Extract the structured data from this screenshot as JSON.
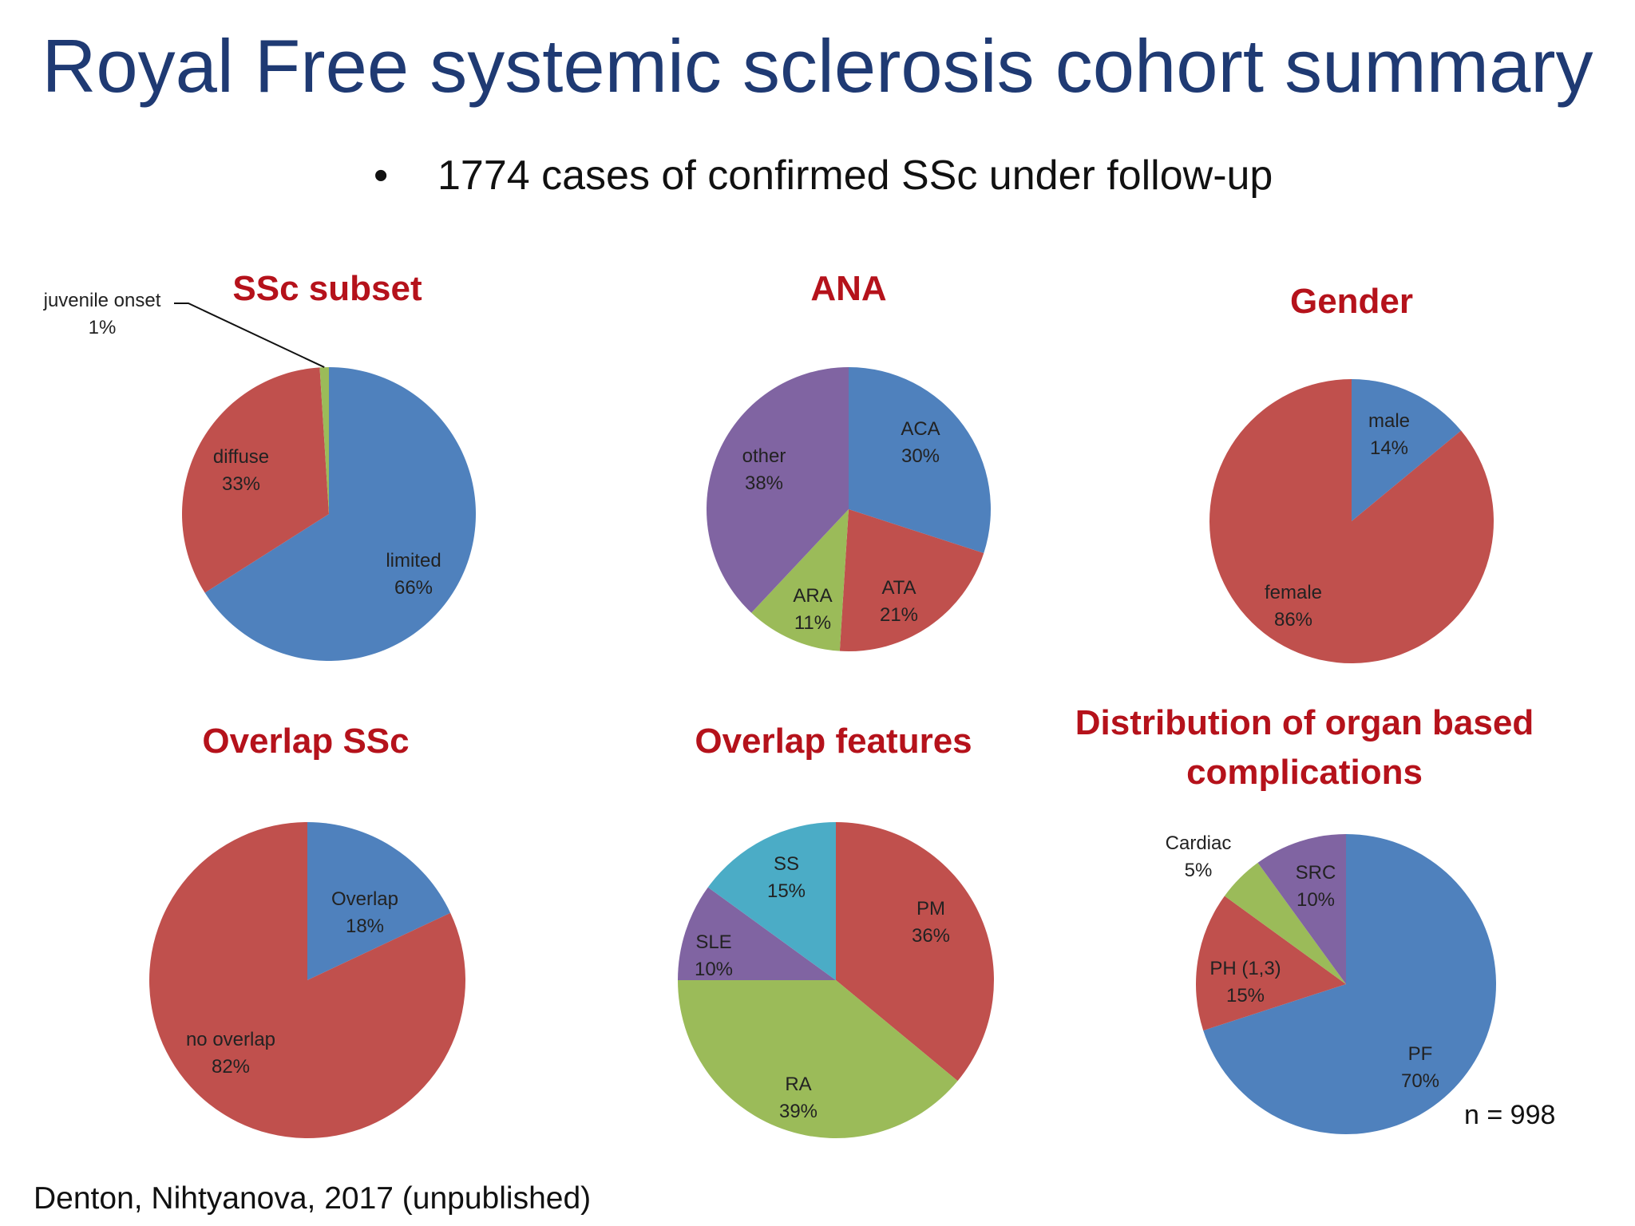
{
  "slide": {
    "title": "Royal Free systemic sclerosis cohort summary",
    "bullet": "1774 cases of confirmed SSc under follow-up",
    "n_note": "n = 998",
    "source": "Denton, Nihtyanova, 2017 (unpublished)"
  },
  "colors": {
    "title": "#1f3a73",
    "chart_title": "#b5121b",
    "blue": "#4f81bd",
    "red": "#c0504d",
    "green": "#9bbb59",
    "purple": "#8064a2",
    "teal": "#4bacc6"
  },
  "chart_data": [
    {
      "type": "pie",
      "title": "SSc subset",
      "slices": [
        {
          "label": "limited",
          "value": 66,
          "color": "#4f81bd"
        },
        {
          "label": "diffuse",
          "value": 33,
          "color": "#c0504d"
        },
        {
          "label": "juvenile onset",
          "value": 1,
          "color": "#9bbb59"
        }
      ]
    },
    {
      "type": "pie",
      "title": "ANA",
      "slices": [
        {
          "label": "ACA",
          "value": 30,
          "color": "#4f81bd"
        },
        {
          "label": "ATA",
          "value": 21,
          "color": "#c0504d"
        },
        {
          "label": "ARA",
          "value": 11,
          "color": "#9bbb59"
        },
        {
          "label": "other",
          "value": 38,
          "color": "#8064a2"
        }
      ]
    },
    {
      "type": "pie",
      "title": "Gender",
      "slices": [
        {
          "label": "male",
          "value": 14,
          "color": "#4f81bd"
        },
        {
          "label": "female",
          "value": 86,
          "color": "#c0504d"
        }
      ]
    },
    {
      "type": "pie",
      "title": "Overlap SSc",
      "slices": [
        {
          "label": "Overlap",
          "value": 18,
          "color": "#4f81bd"
        },
        {
          "label": "no overlap",
          "value": 82,
          "color": "#c0504d"
        }
      ]
    },
    {
      "type": "pie",
      "title": "Overlap features",
      "slices": [
        {
          "label": "PM",
          "value": 36,
          "color": "#c0504d"
        },
        {
          "label": "RA",
          "value": 39,
          "color": "#9bbb59"
        },
        {
          "label": "SLE",
          "value": 10,
          "color": "#8064a2"
        },
        {
          "label": "SS",
          "value": 15,
          "color": "#4bacc6"
        }
      ]
    },
    {
      "type": "pie",
      "title": "Distribution of organ based complications",
      "slices": [
        {
          "label": "PF",
          "value": 70,
          "color": "#4f81bd"
        },
        {
          "label": "PH (1,3)",
          "value": 15,
          "color": "#c0504d"
        },
        {
          "label": "Cardiac",
          "value": 5,
          "color": "#9bbb59"
        },
        {
          "label": "SRC",
          "value": 10,
          "color": "#8064a2"
        }
      ]
    }
  ]
}
